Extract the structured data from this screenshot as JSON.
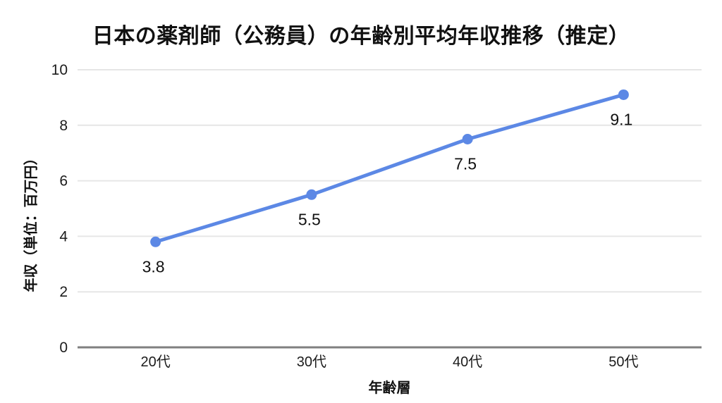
{
  "chart_data": {
    "type": "line",
    "title": "日本の薬剤師（公務員）の年齢別平均年収推移（推定）",
    "xlabel": "年齢層",
    "ylabel": "年収（単位：百万円）",
    "categories": [
      "20代",
      "30代",
      "40代",
      "50代"
    ],
    "values": [
      3.8,
      5.5,
      7.5,
      9.1
    ],
    "data_labels": [
      "3.8",
      "5.5",
      "7.5",
      "9.1"
    ],
    "yticks": [
      0,
      2,
      4,
      6,
      8,
      10
    ],
    "ylim": [
      0,
      10
    ],
    "grid": true,
    "legend": false,
    "colors": {
      "line": "#5C88E5",
      "marker": "#5C88E5",
      "grid": "#E6E6E6",
      "axis": "#7F7F7F",
      "tick_text": "#1c1c1c",
      "label_text": "#111111"
    }
  }
}
